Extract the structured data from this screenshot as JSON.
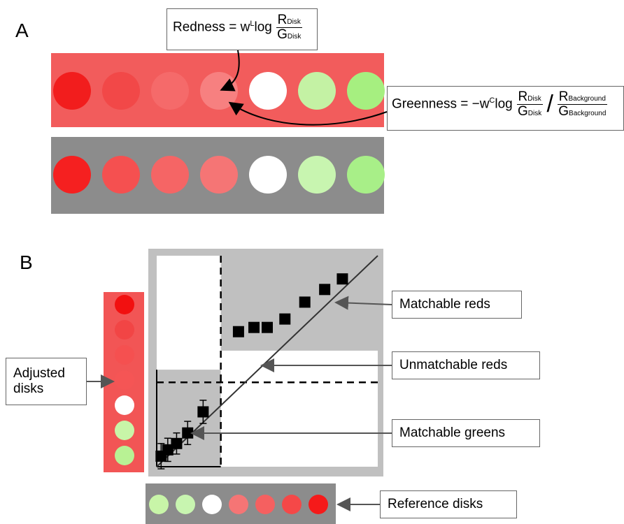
{
  "panel_a": {
    "label": "A",
    "redness_formula": {
      "lhs": "Redness = w",
      "sup": "L",
      "fn": "log",
      "num": "R",
      "num_sub": "Disk",
      "den": "G",
      "den_sub": "Disk"
    },
    "greenness_formula": {
      "lhs": "Greenness = −w",
      "sup": "C",
      "fn": "log",
      "num1": "R",
      "num1_sub": "Disk",
      "den1": "G",
      "den1_sub": "Disk",
      "num2": "R",
      "num2_sub": "Background",
      "den2": "G",
      "den2_sub": "Background"
    },
    "red_background_color": "#f25c5c",
    "grey_background_color": "#8c8c8c",
    "top_row_disk_colors": [
      "#f21d1d",
      "#f24848",
      "#f56a6a",
      "#f78080",
      "#ffffff",
      "#c4f2a4",
      "#a6ef80"
    ],
    "bottom_row_disk_colors": [
      "#f52020",
      "#f55050",
      "#f56565",
      "#f57575",
      "#ffffff",
      "#c8f5b0",
      "#a8ef88"
    ]
  },
  "panel_b": {
    "label": "B",
    "callouts": {
      "matchable_reds": "Matchable reds",
      "unmatchable_reds": "Unmatchable reds",
      "matchable_greens": "Matchable greens",
      "adjusted_disks_line1": "Adjusted",
      "adjusted_disks_line2": "disks",
      "reference_disks": "Reference disks"
    },
    "adjusted_disk_colors": [
      "#f21010",
      "#f24545",
      "#f55050",
      "#f55555",
      "#ffffff",
      "#c8f5a8",
      "#b8f294"
    ],
    "reference_disk_colors": [
      "#c8f5a8",
      "#c8f5b0",
      "#ffffff",
      "#f57575",
      "#f56060",
      "#f54848",
      "#f51a1a"
    ],
    "plot_background_color": "#c0c0c0",
    "strip_red_color": "#f25555",
    "strip_grey_color": "#8c8c8c"
  },
  "chart_data": {
    "type": "scatter",
    "title": "",
    "xlabel": "",
    "ylabel": "",
    "xlim": [
      0,
      10
    ],
    "ylim": [
      0,
      10
    ],
    "grid": false,
    "points": [
      {
        "x": 0.5,
        "y": 0.8,
        "err": 0.55
      },
      {
        "x": 0.9,
        "y": 1.1,
        "err": 0.5
      },
      {
        "x": 1.4,
        "y": 1.6,
        "err": 0.55
      },
      {
        "x": 2.1,
        "y": 2.6,
        "err": 0.55
      },
      {
        "x": 3.7,
        "y": 6.4,
        "err": 0.2
      },
      {
        "x": 4.4,
        "y": 6.6,
        "err": 0.15
      },
      {
        "x": 5.0,
        "y": 6.6,
        "err": 0.15
      },
      {
        "x": 5.8,
        "y": 7.0,
        "err": 0.15
      },
      {
        "x": 6.7,
        "y": 7.8,
        "err": 0.15
      },
      {
        "x": 7.6,
        "y": 8.4,
        "err": 0.15
      },
      {
        "x": 8.4,
        "y": 8.9,
        "err": 0.15
      },
      {
        "x": 0.2,
        "y": 0.5,
        "err": 0.6
      }
    ],
    "identity_line": true
  }
}
